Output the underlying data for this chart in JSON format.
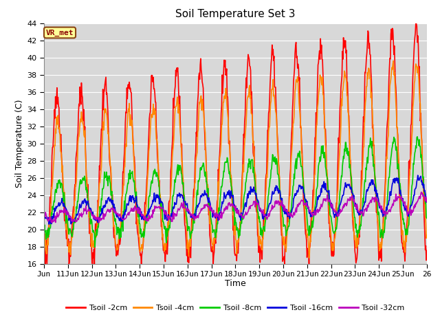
{
  "title": "Soil Temperature Set 3",
  "xlabel": "Time",
  "ylabel": "Soil Temperature (C)",
  "ylim": [
    16,
    44
  ],
  "xlim": [
    0,
    16
  ],
  "plot_bg_color": "#d8d8d8",
  "grid_color": "white",
  "tick_labels": [
    "Jun",
    "11Jun",
    "12Jun",
    "13Jun",
    "14Jun",
    "15Jun",
    "16Jun",
    "17Jun",
    "18Jun",
    "19Jun",
    "20Jun",
    "21Jun",
    "22Jun",
    "23Jun",
    "24Jun",
    "25Jun",
    "26"
  ],
  "legend_labels": [
    "Tsoil -2cm",
    "Tsoil -4cm",
    "Tsoil -8cm",
    "Tsoil -16cm",
    "Tsoil -32cm"
  ],
  "line_colors": [
    "#ff0000",
    "#ff8800",
    "#00cc00",
    "#0000dd",
    "#bb00bb"
  ],
  "line_widths": [
    1.2,
    1.2,
    1.2,
    1.2,
    1.2
  ],
  "vrmet_label": "VR_met",
  "vrmet_bg": "#ffff99",
  "vrmet_border": "#8B4513",
  "title_fontsize": 11,
  "axis_fontsize": 9,
  "tick_fontsize": 8,
  "legend_fontsize": 8
}
